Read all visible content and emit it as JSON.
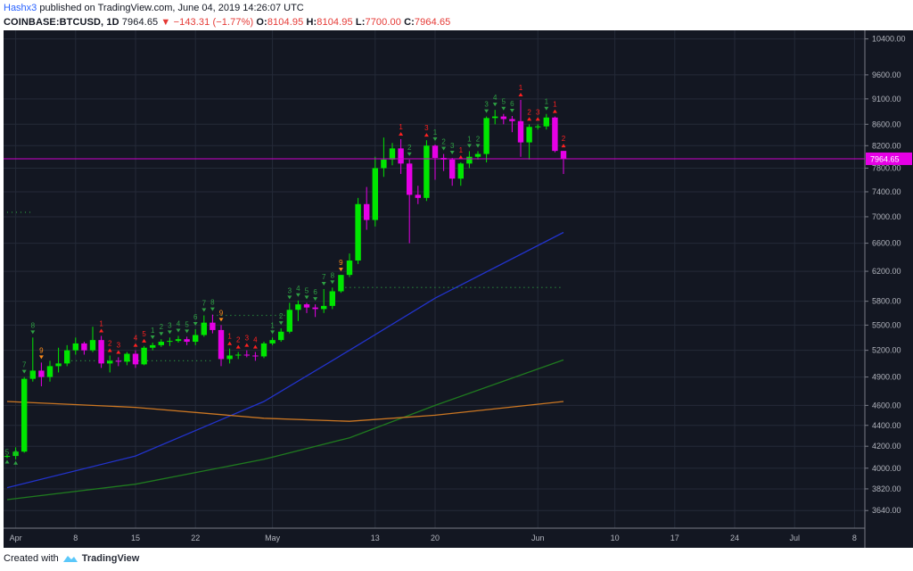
{
  "header": {
    "line1_author": "Hashx3",
    "line1_rest": " published on TradingView.com, June 04, 2019 14:26:07 UTC",
    "symbol": "COINBASE:BTCUSD, 1D",
    "last": "7964.65",
    "change": "−143.31 (−1.77%)",
    "o_label": "O:",
    "o_value": "8104.95",
    "h_label": "H:",
    "h_value": "8104.95",
    "l_label": "L:",
    "l_value": "7700.00",
    "c_label": "C:",
    "c_value": "7964.65"
  },
  "footer": {
    "created_with": "Created with",
    "brand": "TradingView"
  },
  "colors": {
    "background": "#131722",
    "bull": "#00e600",
    "bear": "#e600e6",
    "bull_prior": "#e87a8e",
    "ma_fast": "#2233cc",
    "ma_mid": "#1f7a1f",
    "ma_slow": "#cc7722",
    "price_line": "#cc00cc",
    "td_green": "#2ea043",
    "td_red": "#ff2020",
    "td_orange": "#ff8c1a"
  },
  "chart_data": {
    "type": "candlestick",
    "title": "COINBASE:BTCUSD, 1D",
    "y_ticks": [
      "10400.00",
      "9600.00",
      "9100.00",
      "8600.00",
      "8200.00",
      "7800.00",
      "7400.00",
      "7000.00",
      "6600.00",
      "6200.00",
      "5800.00",
      "5500.00",
      "5200.00",
      "4900.00",
      "4600.00",
      "4400.00",
      "4200.00",
      "4000.00",
      "3820.00",
      "3640.00"
    ],
    "x_ticks": [
      "Apr",
      "8",
      "15",
      "22",
      "May",
      "13",
      "20",
      "Jun",
      "10",
      "17",
      "24",
      "Jul",
      "8"
    ],
    "last_price_label": "7964.65",
    "x_start": "2019-03-31",
    "y_scale": "log",
    "ylim": [
      3500,
      10600
    ],
    "candles": [
      [
        "2019-03-31",
        4102,
        4120,
        4090,
        4110
      ],
      [
        "2019-04-01",
        4110,
        4190,
        4080,
        4150
      ],
      [
        "2019-04-02",
        4150,
        4900,
        4140,
        4880
      ],
      [
        "2019-04-03",
        4880,
        5350,
        4850,
        4970
      ],
      [
        "2019-04-04",
        4970,
        5060,
        4800,
        4900
      ],
      [
        "2019-04-05",
        4900,
        5080,
        4850,
        5020
      ],
      [
        "2019-04-06",
        5020,
        5230,
        4950,
        5050
      ],
      [
        "2019-04-07",
        5050,
        5260,
        5020,
        5200
      ],
      [
        "2019-04-08",
        5200,
        5350,
        5150,
        5280
      ],
      [
        "2019-04-09",
        5280,
        5300,
        5150,
        5200
      ],
      [
        "2019-04-10",
        5200,
        5480,
        5180,
        5320
      ],
      [
        "2019-04-11",
        5320,
        5370,
        5000,
        5050
      ],
      [
        "2019-04-12",
        5050,
        5140,
        4950,
        5080
      ],
      [
        "2019-04-13",
        5080,
        5120,
        5020,
        5070
      ],
      [
        "2019-04-14",
        5070,
        5180,
        5030,
        5160
      ],
      [
        "2019-04-15",
        5160,
        5200,
        5000,
        5040
      ],
      [
        "2019-04-16",
        5040,
        5250,
        5030,
        5230
      ],
      [
        "2019-04-17",
        5230,
        5290,
        5200,
        5260
      ],
      [
        "2019-04-18",
        5260,
        5330,
        5240,
        5300
      ],
      [
        "2019-04-19",
        5300,
        5350,
        5250,
        5310
      ],
      [
        "2019-04-20",
        5310,
        5370,
        5290,
        5330
      ],
      [
        "2019-04-21",
        5330,
        5360,
        5260,
        5300
      ],
      [
        "2019-04-22",
        5300,
        5450,
        5260,
        5380
      ],
      [
        "2019-04-23",
        5380,
        5620,
        5360,
        5530
      ],
      [
        "2019-04-24",
        5530,
        5630,
        5400,
        5440
      ],
      [
        "2019-04-25",
        5440,
        5500,
        5020,
        5100
      ],
      [
        "2019-04-26",
        5100,
        5220,
        5050,
        5140
      ],
      [
        "2019-04-27",
        5140,
        5180,
        5100,
        5150
      ],
      [
        "2019-04-28",
        5150,
        5200,
        5120,
        5140
      ],
      [
        "2019-04-29",
        5140,
        5180,
        5080,
        5130
      ],
      [
        "2019-04-30",
        5130,
        5300,
        5110,
        5280
      ],
      [
        "2019-05-01",
        5280,
        5350,
        5260,
        5320
      ],
      [
        "2019-05-02",
        5320,
        5460,
        5300,
        5420
      ],
      [
        "2019-05-03",
        5420,
        5780,
        5400,
        5690
      ],
      [
        "2019-05-04",
        5690,
        5810,
        5550,
        5760
      ],
      [
        "2019-05-05",
        5760,
        5780,
        5650,
        5720
      ],
      [
        "2019-05-06",
        5720,
        5760,
        5600,
        5700
      ],
      [
        "2019-05-07",
        5700,
        5960,
        5650,
        5740
      ],
      [
        "2019-05-08",
        5740,
        5980,
        5700,
        5930
      ],
      [
        "2019-05-09",
        5930,
        6150,
        5910,
        6150
      ],
      [
        "2019-05-10",
        6150,
        6450,
        6120,
        6350
      ],
      [
        "2019-05-11",
        6350,
        7300,
        6300,
        7200
      ],
      [
        "2019-05-12",
        7200,
        7480,
        6800,
        6950
      ],
      [
        "2019-05-13",
        6950,
        8000,
        6850,
        7800
      ],
      [
        "2019-05-14",
        7800,
        8350,
        7650,
        7950
      ],
      [
        "2019-05-15",
        7950,
        8250,
        7850,
        8150
      ],
      [
        "2019-05-16",
        8150,
        8320,
        7700,
        7880
      ],
      [
        "2019-05-17",
        7880,
        7950,
        6600,
        7350
      ],
      [
        "2019-05-18",
        7350,
        7500,
        7200,
        7300
      ],
      [
        "2019-05-19",
        7300,
        8300,
        7250,
        8200
      ],
      [
        "2019-05-20",
        8200,
        8220,
        7600,
        7980
      ],
      [
        "2019-05-21",
        7980,
        8050,
        7750,
        7950
      ],
      [
        "2019-05-22",
        7950,
        7980,
        7500,
        7620
      ],
      [
        "2019-05-23",
        7620,
        7900,
        7500,
        7880
      ],
      [
        "2019-05-24",
        7880,
        8100,
        7800,
        8000
      ],
      [
        "2019-05-25",
        8000,
        8100,
        7950,
        8050
      ],
      [
        "2019-05-26",
        8050,
        8750,
        7900,
        8720
      ],
      [
        "2019-05-27",
        8720,
        8880,
        8600,
        8750
      ],
      [
        "2019-05-28",
        8750,
        8800,
        8600,
        8700
      ],
      [
        "2019-05-29",
        8700,
        8760,
        8450,
        8660
      ],
      [
        "2019-05-30",
        8660,
        9080,
        8000,
        8260
      ],
      [
        "2019-05-31",
        8260,
        8600,
        7950,
        8550
      ],
      [
        "2019-06-01",
        8550,
        8600,
        8500,
        8560
      ],
      [
        "2019-06-02",
        8560,
        8800,
        8500,
        8730
      ],
      [
        "2019-06-03",
        8730,
        8750,
        8080,
        8105
      ],
      [
        "2019-06-04",
        8105,
        8105,
        7700,
        7965
      ]
    ],
    "moving_averages": [
      {
        "color_key": "ma_fast",
        "points": [
          [
            "2019-03-31",
            3830
          ],
          [
            "2019-04-15",
            4110
          ],
          [
            "2019-04-30",
            4640
          ],
          [
            "2019-05-10",
            5200
          ],
          [
            "2019-05-20",
            5840
          ],
          [
            "2019-06-04",
            6760
          ]
        ]
      },
      {
        "color_key": "ma_mid",
        "points": [
          [
            "2019-03-31",
            3730
          ],
          [
            "2019-04-15",
            3860
          ],
          [
            "2019-04-30",
            4080
          ],
          [
            "2019-05-10",
            4280
          ],
          [
            "2019-05-20",
            4600
          ],
          [
            "2019-06-04",
            5090
          ]
        ]
      },
      {
        "color_key": "ma_slow",
        "points": [
          [
            "2019-03-31",
            4640
          ],
          [
            "2019-04-15",
            4580
          ],
          [
            "2019-04-30",
            4470
          ],
          [
            "2019-05-10",
            4440
          ],
          [
            "2019-05-20",
            4500
          ],
          [
            "2019-06-04",
            4640
          ]
        ]
      }
    ],
    "td_labels": [
      [
        "2019-03-31",
        "below",
        "green",
        "5"
      ],
      [
        "2019-04-01",
        "below",
        "green",
        "6"
      ],
      [
        "2019-04-02",
        "above",
        "green",
        "7"
      ],
      [
        "2019-04-03",
        "above",
        "green",
        "8"
      ],
      [
        "2019-04-04",
        "above",
        "orange",
        "9"
      ],
      [
        "2019-04-11",
        "above",
        "red",
        "1"
      ],
      [
        "2019-04-12",
        "above",
        "red",
        "2"
      ],
      [
        "2019-04-13",
        "above",
        "red",
        "3"
      ],
      [
        "2019-04-15",
        "above",
        "red",
        "4"
      ],
      [
        "2019-04-16",
        "above",
        "red",
        "5"
      ],
      [
        "2019-04-17",
        "above",
        "green",
        "1"
      ],
      [
        "2019-04-18",
        "above",
        "green",
        "2"
      ],
      [
        "2019-04-19",
        "above",
        "green",
        "3"
      ],
      [
        "2019-04-20",
        "above",
        "green",
        "4"
      ],
      [
        "2019-04-21",
        "above",
        "green",
        "5"
      ],
      [
        "2019-04-22",
        "above",
        "green",
        "6"
      ],
      [
        "2019-04-23",
        "above",
        "green",
        "7"
      ],
      [
        "2019-04-24",
        "above",
        "green",
        "8"
      ],
      [
        "2019-04-25",
        "above",
        "orange",
        "9"
      ],
      [
        "2019-04-26",
        "above",
        "red",
        "1"
      ],
      [
        "2019-04-27",
        "above",
        "red",
        "2"
      ],
      [
        "2019-04-28",
        "above",
        "red",
        "3"
      ],
      [
        "2019-04-29",
        "above",
        "red",
        "4"
      ],
      [
        "2019-05-01",
        "above",
        "green",
        "1"
      ],
      [
        "2019-05-02",
        "above",
        "green",
        "2"
      ],
      [
        "2019-05-03",
        "above",
        "green",
        "3"
      ],
      [
        "2019-05-04",
        "above",
        "green",
        "4"
      ],
      [
        "2019-05-05",
        "above",
        "green",
        "5"
      ],
      [
        "2019-05-06",
        "above",
        "green",
        "6"
      ],
      [
        "2019-05-07",
        "above",
        "green",
        "7"
      ],
      [
        "2019-05-08",
        "above",
        "green",
        "8"
      ],
      [
        "2019-05-09",
        "above",
        "orange",
        "9"
      ],
      [
        "2019-05-16",
        "above",
        "red",
        "1"
      ],
      [
        "2019-05-17",
        "above",
        "green",
        "2"
      ],
      [
        "2019-05-19",
        "above",
        "red",
        "3"
      ],
      [
        "2019-05-20",
        "above",
        "green",
        "1"
      ],
      [
        "2019-05-21",
        "above",
        "green",
        "2"
      ],
      [
        "2019-05-22",
        "above",
        "green",
        "3"
      ],
      [
        "2019-05-23",
        "above",
        "red",
        "1"
      ],
      [
        "2019-05-24",
        "above",
        "green",
        "1"
      ],
      [
        "2019-05-25",
        "above",
        "green",
        "2"
      ],
      [
        "2019-05-26",
        "above",
        "green",
        "3"
      ],
      [
        "2019-05-27",
        "above",
        "green",
        "4"
      ],
      [
        "2019-05-28",
        "above",
        "green",
        "5"
      ],
      [
        "2019-05-29",
        "above",
        "green",
        "6"
      ],
      [
        "2019-05-30",
        "above",
        "red",
        "1"
      ],
      [
        "2019-05-31",
        "above",
        "red",
        "2"
      ],
      [
        "2019-06-01",
        "above",
        "red",
        "3"
      ],
      [
        "2019-06-02",
        "above",
        "green",
        "1"
      ],
      [
        "2019-06-03",
        "above",
        "red",
        "1"
      ],
      [
        "2019-06-04",
        "above",
        "red",
        "2"
      ]
    ],
    "support_lines": [
      {
        "color_key": "td_green",
        "y": 7070,
        "x_start": "2019-03-31",
        "x_end": "2019-04-03"
      },
      {
        "color_key": "td_green",
        "y": 5080,
        "x_start": "2019-04-07",
        "x_end": "2019-04-24"
      },
      {
        "color_key": "td_green",
        "y": 5620,
        "x_start": "2019-04-24",
        "x_end": "2019-05-03"
      },
      {
        "color_key": "td_green",
        "y": 5980,
        "x_start": "2019-05-09",
        "x_end": "2019-06-04"
      }
    ]
  }
}
